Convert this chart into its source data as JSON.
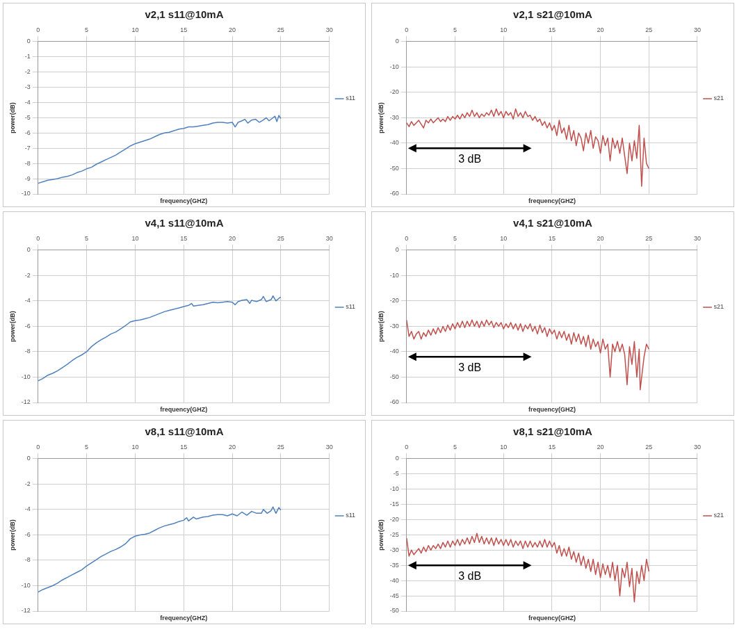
{
  "chart_data": [
    {
      "type": "line",
      "title": "v2,1 s11@10mA",
      "xlabel": "frequency(GHZ)",
      "ylabel": "power(dB)",
      "legend": "right",
      "grid": true,
      "xlim": [
        0,
        30
      ],
      "xticks": [
        0,
        5,
        10,
        15,
        20,
        25,
        30
      ],
      "ylim": [
        -10,
        0
      ],
      "yticks": [
        0,
        -1,
        -2,
        -3,
        -4,
        -5,
        -6,
        -7,
        -8,
        -9,
        -10
      ],
      "series": [
        {
          "name": "s11",
          "color": "#4f81bd",
          "x": [
            0,
            0.5,
            1,
            1.5,
            2,
            2.5,
            3,
            3.5,
            4,
            4.5,
            5,
            5.5,
            6,
            6.5,
            7,
            7.5,
            8,
            8.5,
            9,
            9.5,
            10,
            10.5,
            11,
            11.5,
            12,
            12.5,
            13,
            13.5,
            14,
            14.5,
            15,
            15.5,
            16,
            16.5,
            17,
            17.5,
            18,
            18.5,
            19,
            19.5,
            20,
            20.3,
            20.6,
            21,
            21.3,
            21.6,
            22,
            22.4,
            22.8,
            23.2,
            23.5,
            23.8,
            24.1,
            24.4,
            24.6,
            24.8,
            25
          ],
          "values": [
            -9.3,
            -9.2,
            -9.1,
            -9.05,
            -9.0,
            -8.9,
            -8.85,
            -8.75,
            -8.6,
            -8.5,
            -8.35,
            -8.25,
            -8.05,
            -7.9,
            -7.75,
            -7.6,
            -7.45,
            -7.25,
            -7.05,
            -6.85,
            -6.7,
            -6.6,
            -6.5,
            -6.4,
            -6.25,
            -6.1,
            -6.0,
            -5.95,
            -5.85,
            -5.75,
            -5.7,
            -5.6,
            -5.6,
            -5.55,
            -5.5,
            -5.45,
            -5.35,
            -5.3,
            -5.3,
            -5.35,
            -5.3,
            -5.6,
            -5.3,
            -5.2,
            -5.1,
            -5.35,
            -5.15,
            -5.1,
            -5.3,
            -5.15,
            -5.0,
            -5.2,
            -5.05,
            -4.9,
            -5.25,
            -4.85,
            -5.05
          ]
        }
      ]
    },
    {
      "type": "line",
      "title": "v2,1 s21@10mA",
      "xlabel": "frequency(GHZ)",
      "ylabel": "power(dB)",
      "legend": "right",
      "grid": true,
      "xlim": [
        0,
        30
      ],
      "xticks": [
        0,
        5,
        10,
        15,
        20,
        25,
        30
      ],
      "ylim": [
        -60,
        0
      ],
      "yticks": [
        0,
        -10,
        -20,
        -30,
        -40,
        -50,
        -60
      ],
      "annotations": [
        "3 dB"
      ],
      "series": [
        {
          "name": "s21",
          "color": "#c0504d",
          "x": [
            0,
            0.25,
            0.5,
            0.75,
            1,
            1.25,
            1.5,
            1.75,
            2,
            2.25,
            2.5,
            2.75,
            3,
            3.25,
            3.5,
            3.75,
            4,
            4.25,
            4.5,
            4.75,
            5,
            5.25,
            5.5,
            5.75,
            6,
            6.25,
            6.5,
            6.75,
            7,
            7.25,
            7.5,
            7.75,
            8,
            8.25,
            8.5,
            8.75,
            9,
            9.25,
            9.5,
            9.75,
            10,
            10.25,
            10.5,
            10.75,
            11,
            11.25,
            11.5,
            11.75,
            12,
            12.25,
            12.5,
            12.75,
            13,
            13.25,
            13.5,
            13.75,
            14,
            14.25,
            14.5,
            14.75,
            15,
            15.25,
            15.5,
            15.75,
            16,
            16.25,
            16.5,
            16.75,
            17,
            17.25,
            17.5,
            17.75,
            18,
            18.25,
            18.5,
            18.75,
            19,
            19.25,
            19.5,
            19.75,
            20,
            20.25,
            20.5,
            20.75,
            21,
            21.25,
            21.5,
            21.75,
            22,
            22.25,
            22.5,
            22.75,
            23,
            23.25,
            23.5,
            23.75,
            24,
            24.25,
            24.5,
            24.75,
            25
          ],
          "values": [
            -32,
            -33.5,
            -31.5,
            -33,
            -32,
            -31,
            -32.5,
            -34,
            -31,
            -32,
            -30.5,
            -32,
            -31,
            -30,
            -31.5,
            -30.5,
            -31.5,
            -29.5,
            -31,
            -29.5,
            -30.5,
            -29,
            -30.5,
            -28.5,
            -30,
            -28,
            -29.5,
            -27,
            -29.5,
            -28,
            -30,
            -28.5,
            -29.5,
            -28,
            -29,
            -27,
            -29.5,
            -26.5,
            -29,
            -27.5,
            -30,
            -27.5,
            -29,
            -28,
            -30.5,
            -26.5,
            -29.5,
            -28,
            -30,
            -27.5,
            -29.5,
            -29,
            -31,
            -29.5,
            -31.5,
            -30.5,
            -33,
            -31.5,
            -34,
            -32,
            -35,
            -33,
            -37,
            -31,
            -36,
            -34,
            -38.5,
            -33,
            -39,
            -35,
            -41,
            -36,
            -38,
            -43,
            -36,
            -40,
            -35,
            -42,
            -37.5,
            -39,
            -44,
            -37,
            -41,
            -38,
            -47,
            -38,
            -42,
            -39,
            -44,
            -38,
            -45,
            -52,
            -40,
            -47,
            -39,
            -46,
            -33,
            -57,
            -38,
            -48,
            -50
          ]
        }
      ]
    },
    {
      "type": "line",
      "title": "v4,1 s11@10mA",
      "xlabel": "frequency(GHZ)",
      "ylabel": "power(dB)",
      "legend": "right",
      "grid": true,
      "xlim": [
        0,
        30
      ],
      "xticks": [
        0,
        5,
        10,
        15,
        20,
        25,
        30
      ],
      "ylim": [
        -12,
        0
      ],
      "yticks": [
        0,
        -2,
        -4,
        -6,
        -8,
        -10,
        -12
      ],
      "series": [
        {
          "name": "s11",
          "color": "#4f81bd",
          "x": [
            0,
            0.5,
            1,
            1.5,
            2,
            2.5,
            3,
            3.5,
            4,
            4.5,
            5,
            5.5,
            6,
            6.5,
            7,
            7.5,
            8,
            8.5,
            9,
            9.5,
            10,
            10.5,
            11,
            11.5,
            12,
            12.5,
            13,
            13.5,
            14,
            14.5,
            15,
            15.5,
            15.8,
            16,
            16.5,
            17,
            17.5,
            18,
            18.5,
            19,
            19.5,
            20,
            20.3,
            20.6,
            21,
            21.5,
            21.8,
            22,
            22.5,
            23,
            23.2,
            23.5,
            24,
            24.2,
            24.5,
            24.8,
            25
          ],
          "values": [
            -10.3,
            -10.1,
            -9.85,
            -9.7,
            -9.5,
            -9.25,
            -9.0,
            -8.7,
            -8.45,
            -8.25,
            -8.0,
            -7.6,
            -7.3,
            -7.05,
            -6.85,
            -6.6,
            -6.45,
            -6.2,
            -5.95,
            -5.65,
            -5.55,
            -5.5,
            -5.4,
            -5.3,
            -5.15,
            -5.0,
            -4.85,
            -4.75,
            -4.65,
            -4.55,
            -4.45,
            -4.35,
            -4.2,
            -4.4,
            -4.35,
            -4.3,
            -4.2,
            -4.1,
            -4.15,
            -4.1,
            -4.05,
            -4.1,
            -4.3,
            -4.05,
            -3.95,
            -3.9,
            -4.2,
            -3.95,
            -4.05,
            -3.9,
            -3.65,
            -4.05,
            -3.9,
            -3.6,
            -4.0,
            -3.8,
            -3.7
          ]
        }
      ]
    },
    {
      "type": "line",
      "title": "v4,1 s21@10mA",
      "xlabel": "frequency(GHZ)",
      "ylabel": "power(dB)",
      "legend": "right",
      "grid": true,
      "xlim": [
        0,
        30
      ],
      "xticks": [
        0,
        5,
        10,
        15,
        20,
        25,
        30
      ],
      "ylim": [
        -60,
        0
      ],
      "yticks": [
        0,
        -10,
        -20,
        -30,
        -40,
        -50,
        -60
      ],
      "annotations": [
        "3 dB"
      ],
      "series": [
        {
          "name": "s21",
          "color": "#c0504d",
          "x": [
            0,
            0.25,
            0.5,
            0.75,
            1,
            1.25,
            1.5,
            1.75,
            2,
            2.25,
            2.5,
            2.75,
            3,
            3.25,
            3.5,
            3.75,
            4,
            4.25,
            4.5,
            4.75,
            5,
            5.25,
            5.5,
            5.75,
            6,
            6.25,
            6.5,
            6.75,
            7,
            7.25,
            7.5,
            7.75,
            8,
            8.25,
            8.5,
            8.75,
            9,
            9.25,
            9.5,
            9.75,
            10,
            10.25,
            10.5,
            10.75,
            11,
            11.25,
            11.5,
            11.75,
            12,
            12.25,
            12.5,
            12.75,
            13,
            13.25,
            13.5,
            13.75,
            14,
            14.25,
            14.5,
            14.75,
            15,
            15.25,
            15.5,
            15.75,
            16,
            16.25,
            16.5,
            16.75,
            17,
            17.25,
            17.5,
            17.75,
            18,
            18.25,
            18.5,
            18.75,
            19,
            19.25,
            19.5,
            19.75,
            20,
            20.25,
            20.5,
            20.75,
            21,
            21.25,
            21.5,
            21.75,
            22,
            22.25,
            22.5,
            22.75,
            23,
            23.25,
            23.5,
            23.75,
            24,
            24.1,
            24.5,
            24.75,
            25
          ],
          "values": [
            -27.5,
            -34,
            -32,
            -35,
            -33,
            -32,
            -35,
            -32.5,
            -34,
            -31.5,
            -33.5,
            -31,
            -33,
            -30.5,
            -32.5,
            -30,
            -32,
            -29.5,
            -31.5,
            -29,
            -31,
            -28.5,
            -30.5,
            -28,
            -30.5,
            -28,
            -30,
            -27.5,
            -30,
            -28,
            -30.5,
            -28,
            -30,
            -27.5,
            -29.5,
            -28,
            -30.5,
            -28.5,
            -30,
            -28.5,
            -31,
            -29,
            -30.5,
            -28.5,
            -31,
            -29,
            -31.5,
            -29,
            -32,
            -29.5,
            -31,
            -29,
            -32,
            -30,
            -33,
            -29.5,
            -32.5,
            -30.5,
            -34,
            -31,
            -33,
            -31.5,
            -35,
            -32,
            -34.5,
            -32,
            -35.5,
            -33,
            -37,
            -32.5,
            -36,
            -33,
            -37,
            -34,
            -38,
            -33.5,
            -39,
            -35,
            -38,
            -36,
            -40.5,
            -35,
            -39,
            -37,
            -50,
            -37,
            -40,
            -36,
            -40,
            -37,
            -41,
            -53,
            -38,
            -45,
            -36,
            -50,
            -39,
            -55,
            -42,
            -37,
            -39
          ]
        }
      ]
    },
    {
      "type": "line",
      "title": "v8,1 s11@10mA",
      "xlabel": "frequency(GHZ)",
      "ylabel": "power(dB)",
      "legend": "right",
      "grid": true,
      "xlim": [
        0,
        30
      ],
      "xticks": [
        0,
        5,
        10,
        15,
        20,
        25,
        30
      ],
      "ylim": [
        -12,
        0
      ],
      "yticks": [
        0,
        -2,
        -4,
        -6,
        -8,
        -10,
        -12
      ],
      "series": [
        {
          "name": "s11",
          "color": "#4f81bd",
          "x": [
            0,
            0.5,
            1,
            1.5,
            2,
            2.5,
            3,
            3.5,
            4,
            4.5,
            5,
            5.5,
            6,
            6.5,
            7,
            7.5,
            8,
            8.5,
            9,
            9.5,
            10,
            10.5,
            11,
            11.5,
            12,
            12.5,
            13,
            13.5,
            14,
            14.5,
            15,
            15.3,
            15.5,
            16,
            16.3,
            17,
            17.5,
            18,
            18.5,
            19,
            19.5,
            20,
            20.5,
            21,
            21.5,
            22,
            22.5,
            23,
            23.2,
            23.6,
            24,
            24.2,
            24.5,
            24.8,
            25
          ],
          "values": [
            -10.5,
            -10.3,
            -10.15,
            -10.0,
            -9.8,
            -9.55,
            -9.35,
            -9.15,
            -8.95,
            -8.75,
            -8.45,
            -8.2,
            -7.95,
            -7.7,
            -7.5,
            -7.3,
            -7.15,
            -6.95,
            -6.7,
            -6.3,
            -6.1,
            -6.0,
            -5.95,
            -5.85,
            -5.65,
            -5.45,
            -5.3,
            -5.2,
            -5.1,
            -4.95,
            -4.85,
            -4.65,
            -4.9,
            -4.6,
            -4.75,
            -4.6,
            -4.55,
            -4.45,
            -4.4,
            -4.4,
            -4.5,
            -4.35,
            -4.5,
            -4.2,
            -4.45,
            -4.15,
            -4.3,
            -4.3,
            -4.0,
            -4.3,
            -4.1,
            -3.8,
            -4.3,
            -3.85,
            -4.05
          ]
        }
      ]
    },
    {
      "type": "line",
      "title": "v8,1 s21@10mA",
      "xlabel": "frequency(GHZ)",
      "ylabel": "power(dB)",
      "legend": "right",
      "grid": true,
      "xlim": [
        0,
        30
      ],
      "xticks": [
        0,
        5,
        10,
        15,
        20,
        25,
        30
      ],
      "ylim": [
        -50,
        0
      ],
      "yticks": [
        0,
        -5,
        -10,
        -15,
        -20,
        -25,
        -30,
        -35,
        -40,
        -45,
        -50
      ],
      "annotations": [
        "3 dB"
      ],
      "series": [
        {
          "name": "s21",
          "color": "#c0504d",
          "x": [
            0,
            0.25,
            0.5,
            0.75,
            1,
            1.25,
            1.5,
            1.75,
            2,
            2.25,
            2.5,
            2.75,
            3,
            3.25,
            3.5,
            3.75,
            4,
            4.25,
            4.5,
            4.75,
            5,
            5.25,
            5.5,
            5.75,
            6,
            6.25,
            6.5,
            6.75,
            7,
            7.25,
            7.5,
            7.75,
            8,
            8.25,
            8.5,
            8.75,
            9,
            9.25,
            9.5,
            9.75,
            10,
            10.25,
            10.5,
            10.75,
            11,
            11.25,
            11.5,
            11.75,
            12,
            12.25,
            12.5,
            12.75,
            13,
            13.25,
            13.5,
            13.75,
            14,
            14.25,
            14.5,
            14.75,
            15,
            15.25,
            15.5,
            15.75,
            16,
            16.25,
            16.5,
            16.75,
            17,
            17.25,
            17.5,
            17.75,
            18,
            18.25,
            18.5,
            18.75,
            19,
            19.25,
            19.5,
            19.75,
            20,
            20.25,
            20.5,
            20.75,
            21,
            21.25,
            21.5,
            21.75,
            22,
            22.25,
            22.5,
            22.75,
            23,
            23.25,
            23.5,
            23.75,
            24,
            24.25,
            24.5,
            24.75,
            25
          ],
          "values": [
            -26,
            -32,
            -30,
            -31.5,
            -30.5,
            -29.5,
            -31,
            -29,
            -30.5,
            -28.5,
            -30,
            -28.5,
            -29.5,
            -28,
            -29.5,
            -27.5,
            -29,
            -27,
            -29,
            -27,
            -28.5,
            -26.5,
            -28.5,
            -26.5,
            -28,
            -26,
            -28,
            -25.5,
            -27.5,
            -24.5,
            -27.5,
            -25.5,
            -28,
            -26,
            -28,
            -26,
            -28.5,
            -26,
            -28,
            -26.5,
            -28.5,
            -26.5,
            -28.5,
            -26.5,
            -29,
            -27,
            -28.5,
            -27,
            -29.5,
            -27,
            -29,
            -27,
            -29,
            -27.5,
            -29,
            -27,
            -29,
            -26.5,
            -29,
            -27,
            -29,
            -27.5,
            -31,
            -28.5,
            -32,
            -29.5,
            -32,
            -29,
            -33,
            -30.5,
            -34,
            -31,
            -35,
            -32,
            -36,
            -33,
            -37,
            -33,
            -38,
            -34,
            -39,
            -34.5,
            -38,
            -35,
            -39,
            -34,
            -40,
            -35,
            -45,
            -36,
            -39,
            -34,
            -42,
            -36,
            -47,
            -37,
            -41,
            -35,
            -40,
            -33,
            -37
          ]
        }
      ]
    }
  ]
}
